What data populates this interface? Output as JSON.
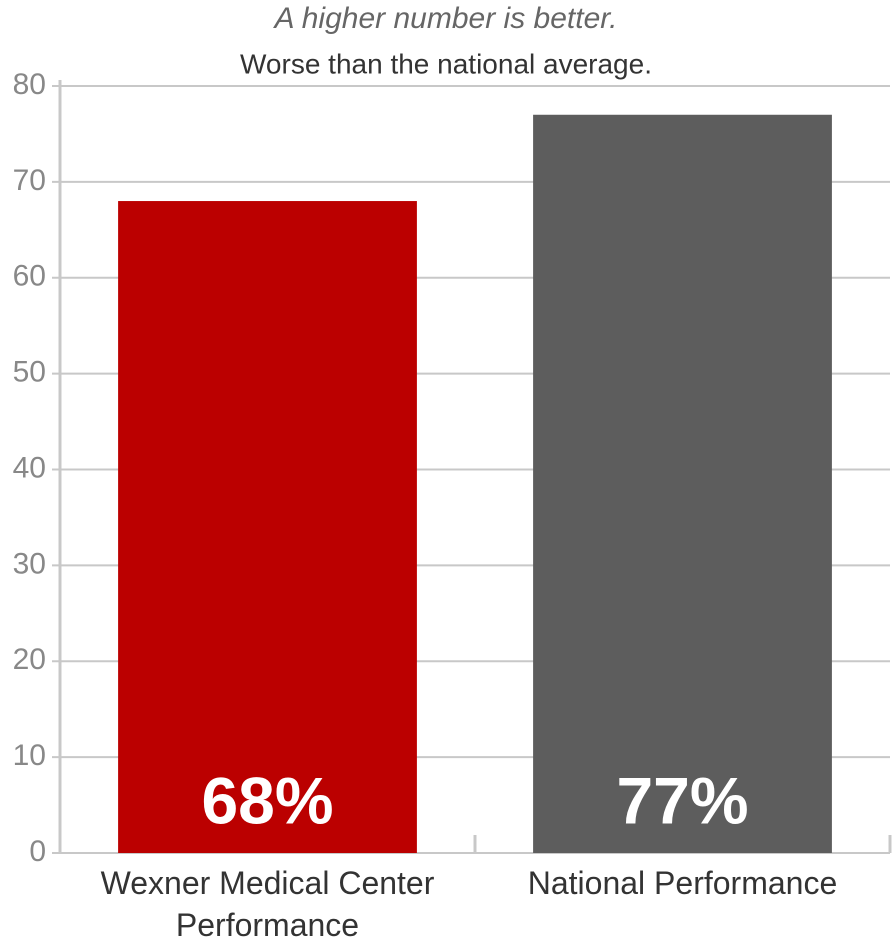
{
  "chart_data": {
    "type": "bar",
    "title": "A higher number is better.",
    "subtitle": "Worse than the national average.",
    "categories": [
      "Wexner Medical Center Performance",
      "National Performance"
    ],
    "values": [
      68,
      77
    ],
    "value_labels": [
      "68%",
      "77%"
    ],
    "colors": [
      "#bb0000",
      "#5d5d5d"
    ],
    "ylim": [
      0,
      80
    ],
    "yticks": [
      0,
      10,
      20,
      30,
      40,
      50,
      60,
      70,
      80
    ],
    "grid": true
  }
}
